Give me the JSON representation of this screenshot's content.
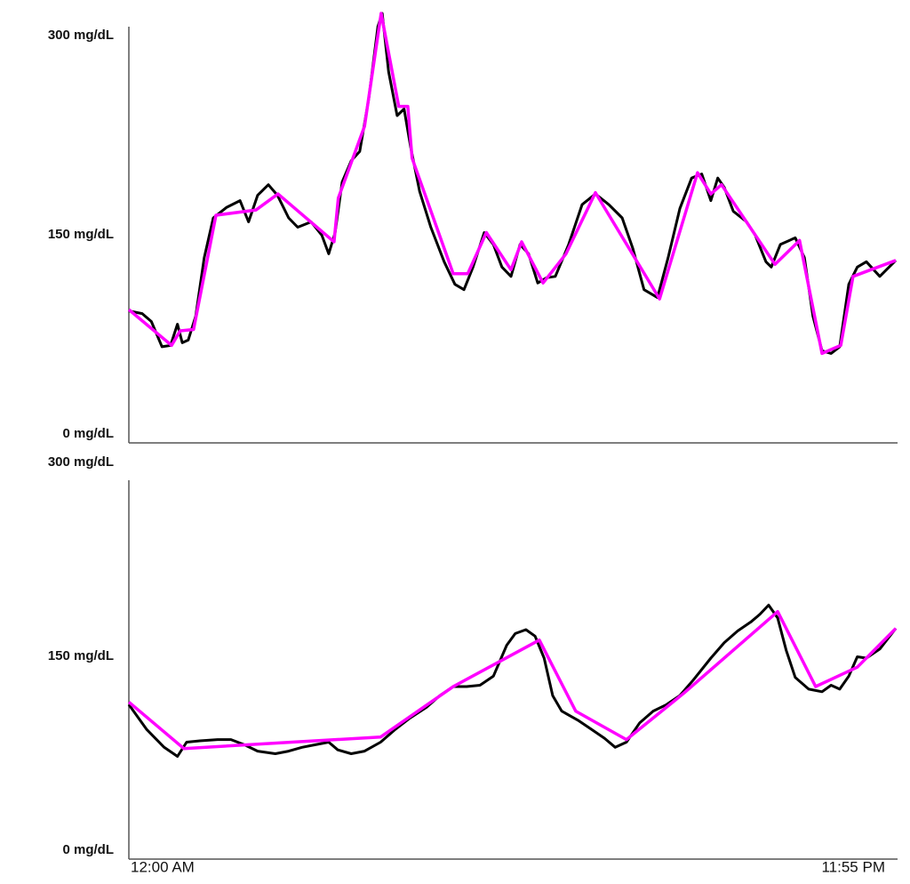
{
  "chart_data": [
    {
      "type": "line",
      "xlim": [
        0,
        1435
      ],
      "ylim": [
        0,
        320
      ],
      "yticks": [
        {
          "value": 0,
          "label": "0 mg/dL"
        },
        {
          "value": 150,
          "label": "150 mg/dL"
        },
        {
          "value": 300,
          "label": "300 mg/dL"
        }
      ],
      "series": [
        {
          "color": "#000000",
          "x": [
            0,
            25,
            42,
            62,
            78,
            91,
            100,
            111,
            125,
            141,
            158,
            183,
            208,
            224,
            241,
            261,
            278,
            299,
            316,
            341,
            361,
            374,
            386,
            399,
            416,
            432,
            449,
            466,
            474,
            486,
            502,
            515,
            527,
            544,
            565,
            590,
            610,
            627,
            644,
            665,
            682,
            698,
            715,
            732,
            748,
            765,
            782,
            798,
            823,
            848,
            873,
            898,
            923,
            943,
            964,
            989,
            1009,
            1031,
            1053,
            1072,
            1089,
            1102,
            1114,
            1131,
            1156,
            1172,
            1192,
            1202,
            1219,
            1247,
            1264,
            1280,
            1297,
            1314,
            1330,
            1347,
            1363,
            1380,
            1405,
            1435
          ],
          "values": [
            94,
            92,
            86,
            67,
            68,
            84,
            70,
            72,
            90,
            134,
            164,
            172,
            177,
            161,
            181,
            189,
            181,
            164,
            157,
            161,
            151,
            137,
            153,
            191,
            207,
            214,
            254,
            308,
            318,
            274,
            241,
            246,
            218,
            184,
            157,
            131,
            114,
            110,
            127,
            153,
            144,
            127,
            120,
            144,
            137,
            115,
            119,
            120,
            144,
            174,
            182,
            174,
            164,
            141,
            110,
            104,
            134,
            171,
            194,
            197,
            177,
            194,
            187,
            169,
            161,
            151,
            131,
            127,
            144,
            149,
            134,
            90,
            64,
            62,
            67,
            114,
            127,
            131,
            120,
            132
          ]
        },
        {
          "color": "#ff00ff",
          "x": [
            0,
            80,
            96,
            121,
            163,
            238,
            279,
            384,
            392,
            441,
            472,
            505,
            522,
            530,
            607,
            634,
            669,
            715,
            735,
            775,
            818,
            873,
            993,
            1064,
            1089,
            1109,
            1209,
            1255,
            1297,
            1332,
            1355,
            1435
          ],
          "values": [
            95,
            68,
            79,
            80,
            166,
            170,
            182,
            146,
            179,
            233,
            318,
            248,
            248,
            209,
            122,
            122,
            153,
            125,
            146,
            115,
            137,
            183,
            103,
            198,
            182,
            189,
            129,
            147,
            62,
            68,
            120,
            132
          ]
        }
      ]
    },
    {
      "type": "line",
      "xlim": [
        0,
        1435
      ],
      "ylim": [
        0,
        300
      ],
      "yticks": [
        {
          "value": 0,
          "label": "0 mg/dL"
        },
        {
          "value": 150,
          "label": "150 mg/dL"
        },
        {
          "value": 300,
          "label": "300 mg/dL"
        }
      ],
      "xticks": [
        {
          "value": 0,
          "label": "12:00 AM"
        },
        {
          "value": 1435,
          "label": "11:55 PM"
        }
      ],
      "series": [
        {
          "color": "#000000",
          "x": [
            0,
            33,
            66,
            91,
            108,
            133,
            166,
            191,
            216,
            241,
            274,
            299,
            324,
            349,
            374,
            391,
            416,
            441,
            471,
            499,
            524,
            557,
            582,
            607,
            632,
            657,
            682,
            707,
            723,
            743,
            760,
            777,
            793,
            810,
            840,
            865,
            890,
            910,
            931,
            956,
            981,
            1006,
            1031,
            1056,
            1089,
            1114,
            1139,
            1164,
            1181,
            1197,
            1214,
            1230,
            1247,
            1272,
            1297,
            1314,
            1330,
            1347,
            1363,
            1380,
            1405,
            1435
          ],
          "values": [
            114,
            95,
            81,
            74,
            85,
            86,
            87,
            87,
            83,
            78,
            76,
            78,
            81,
            83,
            85,
            79,
            76,
            78,
            85,
            95,
            103,
            112,
            121,
            128,
            128,
            129,
            136,
            160,
            169,
            172,
            167,
            150,
            121,
            109,
            102,
            95,
            88,
            81,
            85,
            100,
            109,
            114,
            121,
            133,
            150,
            162,
            171,
            178,
            184,
            191,
            181,
            156,
            135,
            126,
            124,
            129,
            126,
            136,
            151,
            150,
            157,
            173
          ]
        },
        {
          "color": "#ff00ff",
          "x": [
            0,
            103,
            471,
            607,
            768,
            836,
            931,
            1039,
            1214,
            1285,
            1363,
            1435
          ],
          "values": [
            116,
            80,
            89,
            128,
            164,
            109,
            87,
            123,
            186,
            128,
            143,
            173
          ]
        }
      ]
    }
  ]
}
